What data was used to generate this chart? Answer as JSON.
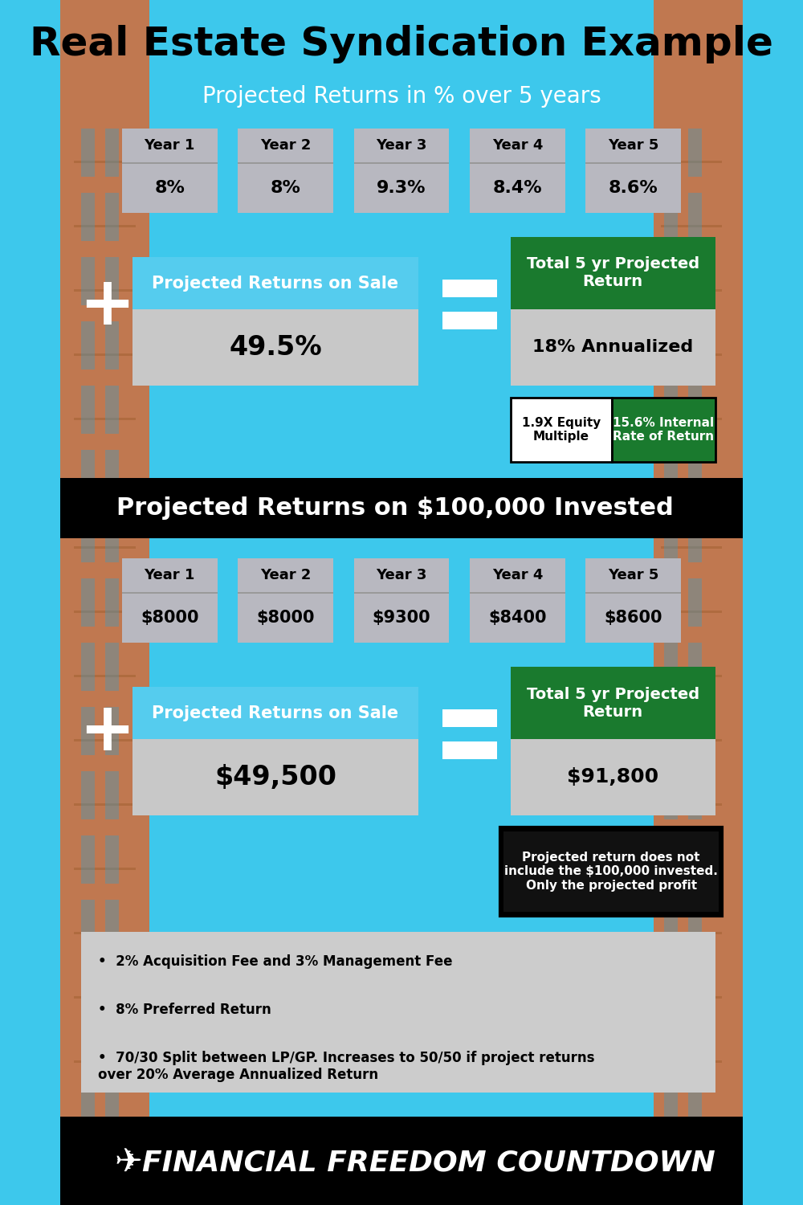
{
  "title": "Real Estate Syndication Example",
  "subtitle1": "Projected Returns in % over 5 years",
  "subtitle2": "Projected Returns on $100,000 Invested",
  "bg_color": "#3DC8EC",
  "years": [
    "Year 1",
    "Year 2",
    "Year 3",
    "Year 4",
    "Year 5"
  ],
  "pct_returns": [
    "8%",
    "8%",
    "9.3%",
    "8.4%",
    "8.6%"
  ],
  "dollar_returns": [
    "$8000",
    "$8000",
    "$9300",
    "$8400",
    "$8600"
  ],
  "proj_sale_label": "Projected Returns on Sale",
  "proj_sale_pct": "49.5%",
  "proj_sale_dollar": "$49,500",
  "total_return_label": "Total 5 yr Projected\nReturn",
  "total_return_pct": "18% Annualized",
  "total_return_dollar": "$91,800",
  "equity_multiple": "1.9X Equity\nMultiple",
  "irr": "15.6% Internal\nRate of Return",
  "disclaimer": "Projected return does not\ninclude the $100,000 invested.\nOnly the projected profit",
  "bullets": [
    "2% Acquisition Fee and 3% Management Fee",
    "8% Preferred Return",
    "70/30 Split between LP/GP. Increases to 50/50 if project returns\nover 20% Average Annualized Return"
  ],
  "footer": "FINANCIAL FREEDOM COUNTDOWN",
  "dark_green": "#1a7a2e",
  "gray_box_color": "#b8b8c0",
  "gray_body_color": "#c8c8c8",
  "blue_header_color": "#55CCEE",
  "white_color": "#ffffff",
  "black_color": "#000000"
}
